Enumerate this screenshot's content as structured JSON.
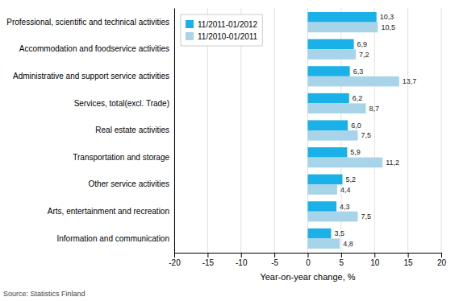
{
  "chart_data": {
    "type": "bar",
    "orientation": "horizontal",
    "categories": [
      "Professional, scientific and technical activities",
      "Accommodation and foodservice activities",
      "Administrative and support service activities",
      "Services, total(excl. Trade)",
      "Real estate activities",
      "Transportation and storage",
      "Other service activities",
      "Arts, entertainment and recreation",
      "Information and communication"
    ],
    "series": [
      {
        "name": "11/2011-01/2012",
        "color": "#1ab0e8",
        "values": [
          10.3,
          6.9,
          6.3,
          6.2,
          6.0,
          5.9,
          5.2,
          4.3,
          3.5
        ],
        "value_labels": [
          "10,3",
          "6,9",
          "6,3",
          "6,2",
          "6,0",
          "5,9",
          "5,2",
          "4,3",
          "3,5"
        ]
      },
      {
        "name": "11/2010-01/2011",
        "color": "#a8d4ea",
        "values": [
          10.5,
          7.2,
          13.7,
          8.7,
          7.5,
          11.2,
          4.4,
          7.5,
          4.8
        ],
        "value_labels": [
          "10,5",
          "7,2",
          "13,7",
          "8,7",
          "7,5",
          "11,2",
          "4,4",
          "7,5",
          "4,8"
        ]
      }
    ],
    "xlim": [
      -20,
      20
    ],
    "xticks": [
      -20,
      -15,
      -10,
      -5,
      0,
      5,
      10,
      15,
      20
    ],
    "xlabel": "Year-on-year change, %",
    "annotations": [
      "Source: Statistics Finland"
    ],
    "grid": true,
    "legend": "upper left",
    "data_labels": true
  }
}
